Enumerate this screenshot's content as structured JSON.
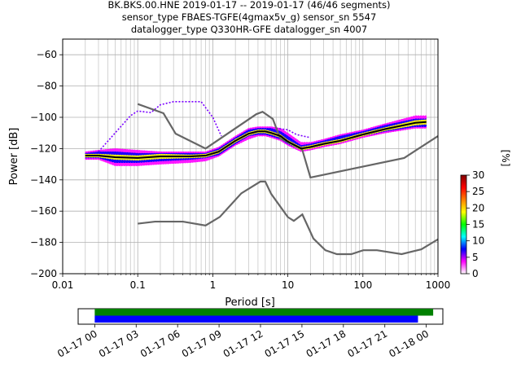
{
  "chart_data": {
    "type": "heatmap",
    "title_lines": [
      "BK.BKS.00.HNE   2019-01-17 -- 2019-01-17  (46/46 segments)",
      "sensor_type FBAES-TGFE(4gmax5v_g) sensor_sn 5547",
      "datalogger_type Q330HR-GFE datalogger_sn 4007"
    ],
    "xlabel": "Period [s]",
    "ylabel": "Power [dB]",
    "x_scale": "log",
    "xlim": [
      0.01,
      1000
    ],
    "ylim": [
      -200,
      -50
    ],
    "x_ticks": [
      0.01,
      0.1,
      1,
      10,
      100,
      1000
    ],
    "x_tick_labels": [
      "0.01",
      "0.1",
      "1",
      "10",
      "100",
      "1000"
    ],
    "y_ticks": [
      -200,
      -180,
      -160,
      -140,
      -120,
      -100,
      -80,
      -60
    ],
    "y_tick_labels": [
      "−200",
      "−180",
      "−160",
      "−140",
      "−120",
      "−100",
      "−80",
      "−60"
    ],
    "grid": true,
    "colorbar": {
      "label": "[%]",
      "range": [
        0,
        30
      ],
      "ticks": [
        0,
        5,
        10,
        15,
        20,
        25,
        30
      ],
      "tick_labels": [
        "0",
        "5",
        "10",
        "15",
        "20",
        "25",
        "30"
      ],
      "colors": [
        "#ffffff",
        "#ff00ff",
        "#0000ff",
        "#00ffff",
        "#00ff00",
        "#ffff00",
        "#ff8000",
        "#ff0000",
        "#800000"
      ]
    },
    "noise_models": [
      {
        "x": [
          0.1,
          0.22,
          0.32,
          0.8,
          3.8,
          4.6,
          6.3,
          7.9,
          15.4,
          20,
          354.8,
          1000
        ],
        "y": [
          -91.5,
          -97.4,
          -110.5,
          -120,
          -98,
          -96.5,
          -101,
          -113.5,
          -120,
          -138.5,
          -126,
          -112
        ]
      },
      {
        "x": [
          0.1,
          0.17,
          0.4,
          0.8,
          1.24,
          2.4,
          4.3,
          5,
          6,
          10,
          12,
          15.6,
          21.9,
          31.6,
          45,
          70,
          101,
          154,
          328,
          600,
          1000
        ],
        "y": [
          -168,
          -166.7,
          -166.7,
          -169.2,
          -163.7,
          -148.6,
          -141.1,
          -141.1,
          -149,
          -163.8,
          -166.2,
          -162.1,
          -177.5,
          -185,
          -187.5,
          -187.5,
          -185,
          -185,
          -187.5,
          -184.4,
          -178
        ]
      }
    ],
    "mode_curve": {
      "x": [
        0.02,
        0.03,
        0.05,
        0.1,
        0.2,
        0.5,
        0.8,
        1.2,
        2,
        3,
        4,
        5,
        6,
        8,
        10,
        15,
        20,
        30,
        50,
        100,
        200,
        500,
        700
      ],
      "y": [
        -124.5,
        -124.5,
        -125.5,
        -126,
        -125,
        -125,
        -124.5,
        -122,
        -115,
        -110.5,
        -109,
        -109,
        -110,
        -112,
        -115.5,
        -120,
        -119,
        -117,
        -115,
        -111,
        -107.5,
        -103.5,
        -103
      ]
    },
    "probability_bands": [
      {
        "pct": 3,
        "x": [
          0.02,
          0.03,
          0.05,
          0.1,
          0.2,
          0.5,
          0.8,
          1.2,
          2,
          3,
          4,
          5,
          6,
          8,
          10,
          15,
          20,
          30,
          50,
          100,
          200,
          500,
          700
        ],
        "lo": [
          -127,
          -127,
          -131,
          -131,
          -130,
          -129,
          -128,
          -125,
          -118,
          -114,
          -112,
          -112,
          -113,
          -115,
          -118,
          -122,
          -121,
          -119,
          -117,
          -113,
          -110,
          -107,
          -107
        ],
        "hi": [
          -122,
          -121,
          -120,
          -121,
          -122,
          -122,
          -122,
          -119,
          -112,
          -107,
          -106,
          -106,
          -106,
          -107,
          -110,
          -116,
          -116,
          -114,
          -111,
          -108,
          -104,
          -99,
          -99
        ]
      },
      {
        "pct": 9,
        "x": [
          0.02,
          0.03,
          0.05,
          0.1,
          0.2,
          0.5,
          0.8,
          1.2,
          2,
          3,
          4,
          5,
          6,
          8,
          10,
          15,
          20,
          30,
          50,
          100,
          200,
          500,
          700
        ],
        "lo": [
          -126,
          -126,
          -129,
          -129,
          -128,
          -127,
          -126,
          -124,
          -117,
          -112,
          -111,
          -111,
          -112,
          -114,
          -117,
          -121,
          -120,
          -118,
          -116,
          -112,
          -109,
          -106,
          -106
        ],
        "hi": [
          -123,
          -122,
          -122,
          -123,
          -123,
          -123,
          -123,
          -120,
          -113,
          -108,
          -107,
          -107,
          -107,
          -109,
          -112,
          -118,
          -117,
          -115,
          -112,
          -109,
          -105,
          -101,
          -101
        ]
      },
      {
        "pct": 18,
        "x": [
          0.02,
          0.03,
          0.05,
          0.1,
          0.2,
          0.5,
          0.8,
          1.2,
          2,
          3,
          4,
          5,
          6,
          8,
          10,
          15,
          20,
          30,
          50,
          100,
          200,
          500,
          700
        ],
        "lo": [
          -125.5,
          -125.5,
          -127,
          -127.5,
          -126.5,
          -126,
          -125.5,
          -123,
          -116,
          -111.5,
          -110,
          -110,
          -111,
          -113,
          -116.5,
          -121,
          -120,
          -118,
          -116,
          -112,
          -108.5,
          -105,
          -104.5
        ],
        "hi": [
          -123.5,
          -123.5,
          -124,
          -124.5,
          -123.5,
          -124,
          -123.5,
          -121,
          -114,
          -109.5,
          -108,
          -108,
          -109,
          -111,
          -114.5,
          -119,
          -118,
          -116,
          -114,
          -110,
          -106.5,
          -102,
          -101.5
        ]
      }
    ],
    "outlier_segments": [
      {
        "pct": 1,
        "x": [
          0.03,
          0.05,
          0.08,
          0.1,
          0.15,
          0.2,
          0.3,
          0.5,
          0.7,
          1.0,
          1.3
        ],
        "y": [
          -122,
          -110,
          -99,
          -96,
          -97,
          -92,
          -90,
          -90,
          -90,
          -100,
          -112
        ]
      },
      {
        "pct": 1,
        "x": [
          7,
          10,
          13,
          16,
          20
        ],
        "y": [
          -107,
          -108,
          -111,
          -112,
          -113
        ]
      }
    ],
    "timeline": {
      "start_label": "01-17 00",
      "tick_labels": [
        "01-17 00",
        "01-17 03",
        "01-17 06",
        "01-17 09",
        "01-17 12",
        "01-17 15",
        "01-17 18",
        "01-17 21",
        "01-18 00"
      ],
      "tick_hours": [
        0,
        3,
        6,
        9,
        12,
        15,
        18,
        21,
        24
      ],
      "range_hours": [
        -1.2,
        25.2
      ],
      "bars": [
        {
          "color": "#008000",
          "start_hour": 0,
          "end_hour": 24.5
        },
        {
          "color": "#0000ff",
          "start_hour": 0,
          "end_hour": 23.4
        }
      ]
    }
  }
}
